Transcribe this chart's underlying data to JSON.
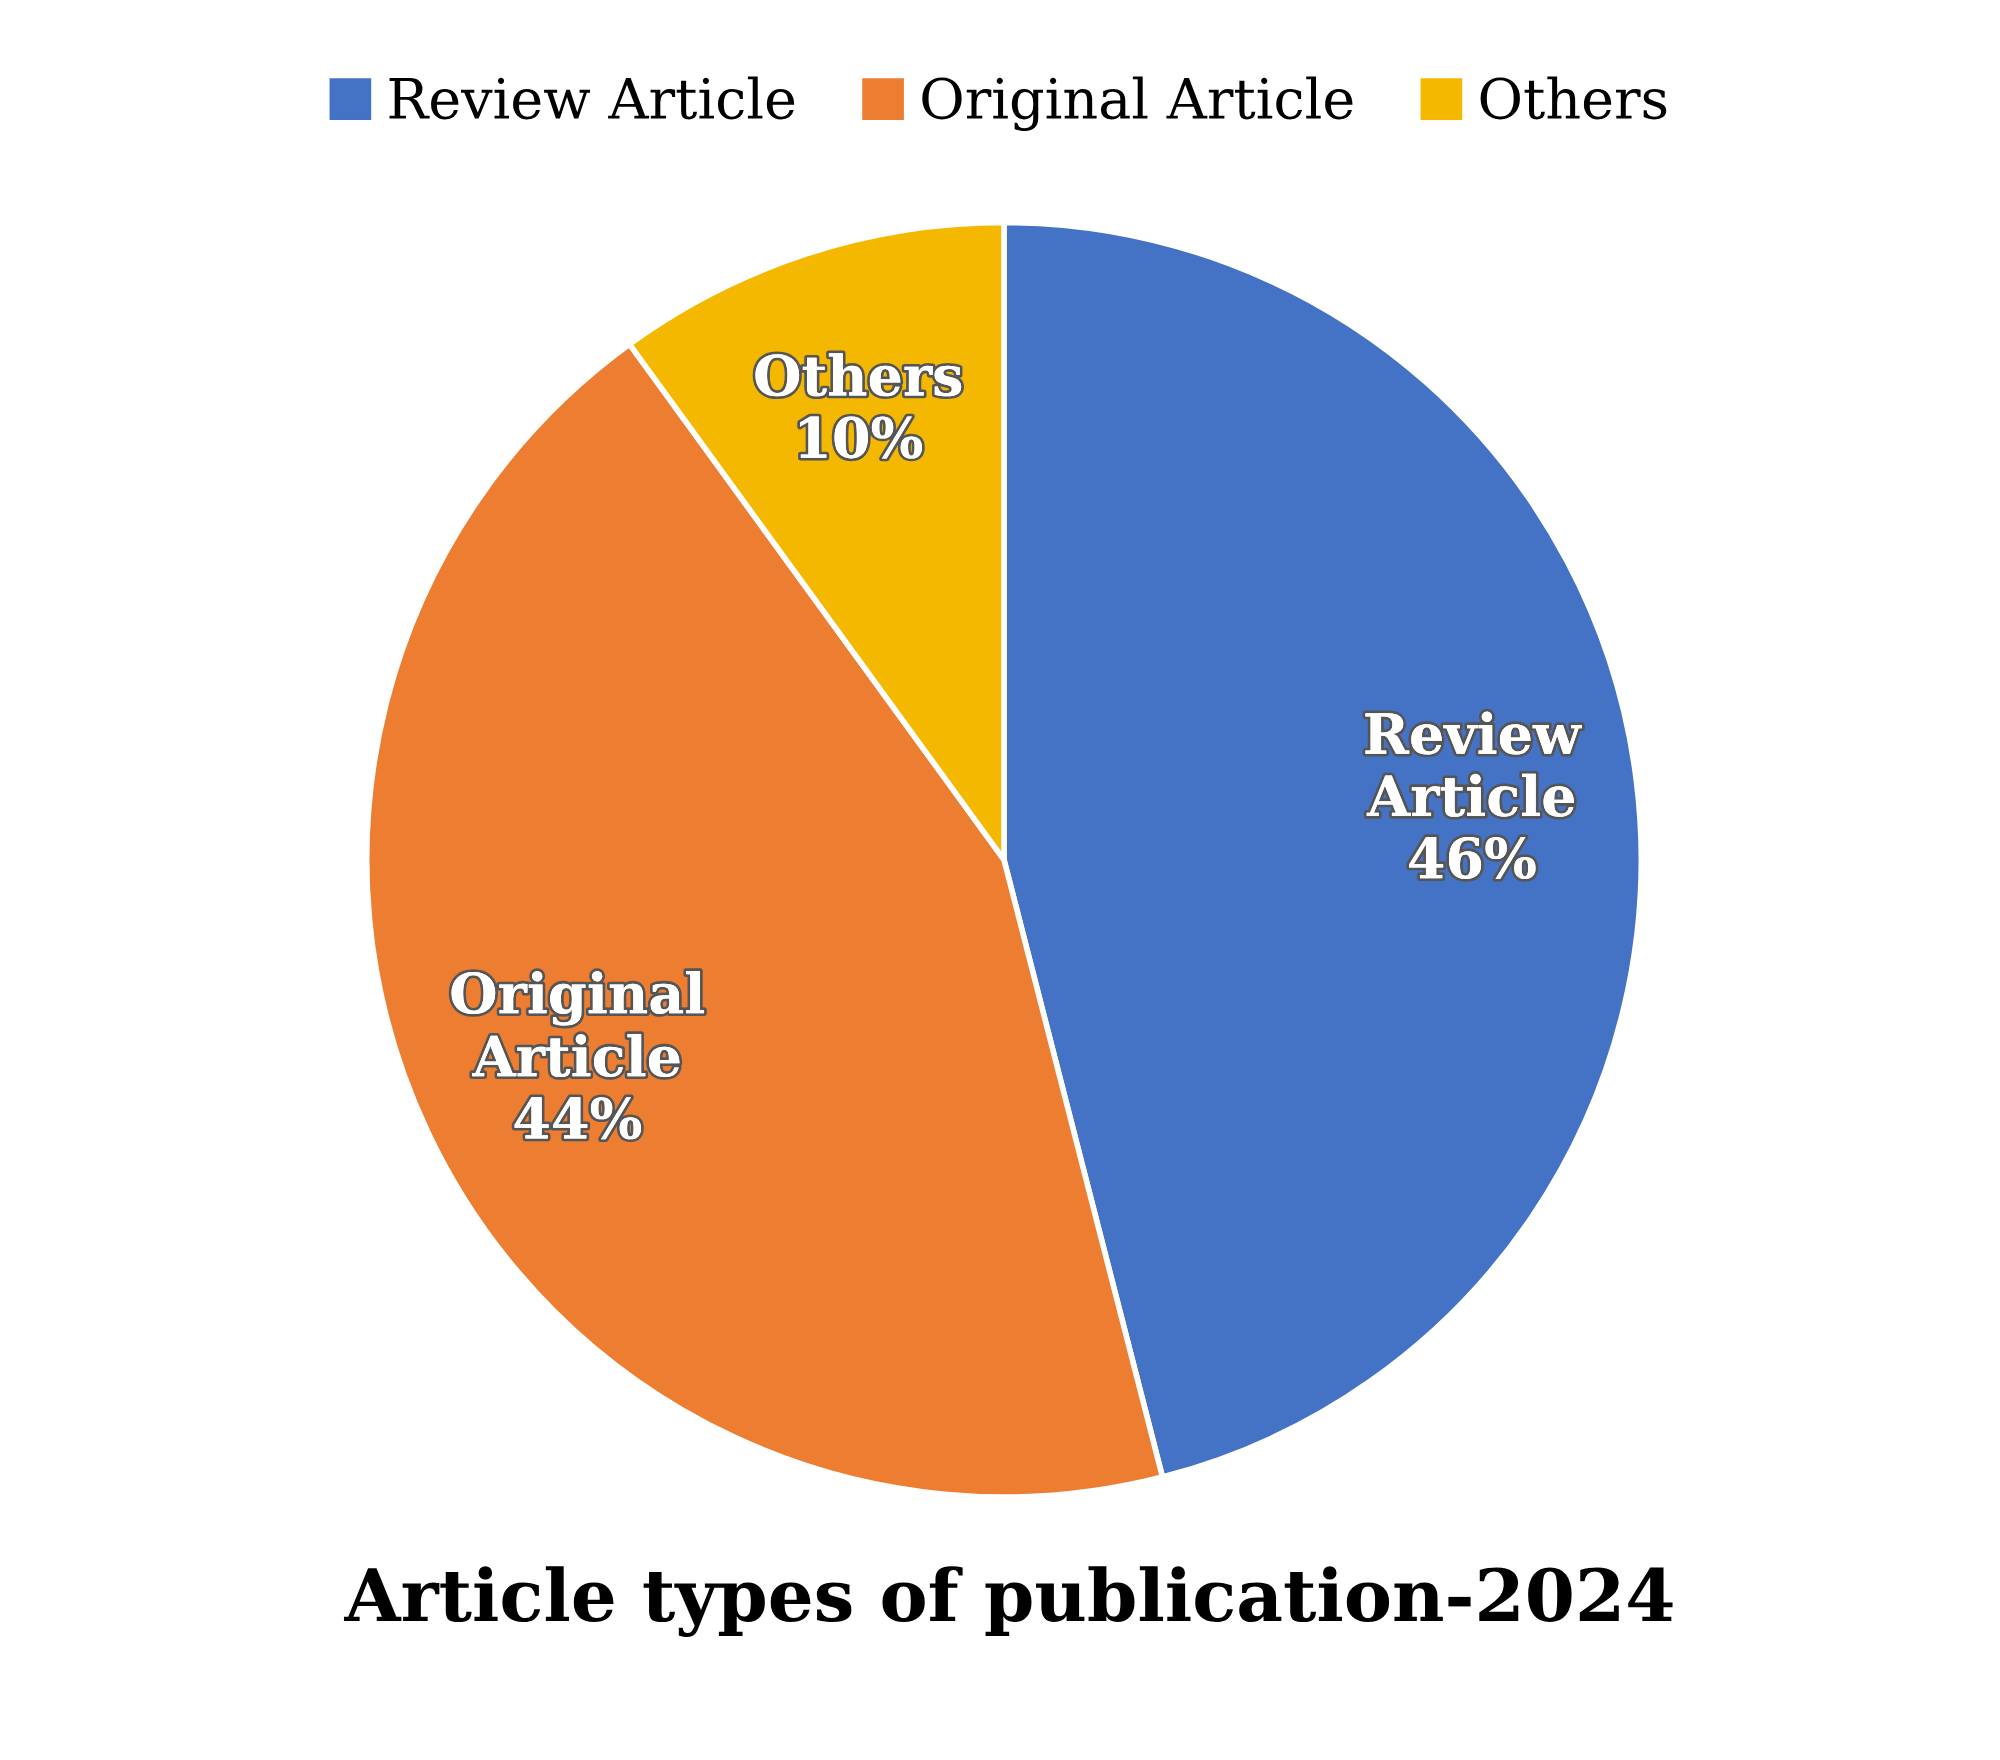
{
  "chart_data": {
    "type": "pie",
    "title": "Article types of publication-2024",
    "categories": [
      "Review Article",
      "Original Article",
      "Others"
    ],
    "values": [
      46,
      44,
      10
    ],
    "colors": [
      "#4472c4",
      "#ed7d31",
      "#f5b800"
    ],
    "value_labels": [
      "46%",
      "44%",
      "10%"
    ],
    "legend": "top"
  }
}
